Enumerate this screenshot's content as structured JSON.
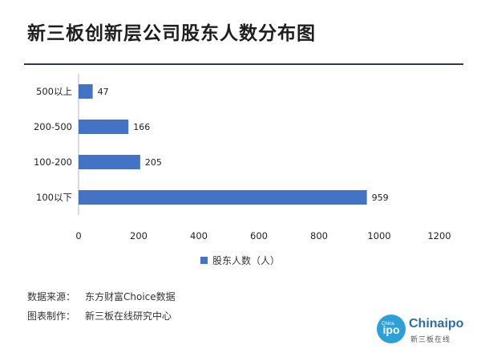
{
  "title": "新三板创新层公司股东人数分布图",
  "chart_data": {
    "type": "bar",
    "orientation": "horizontal",
    "categories": [
      "500以上",
      "200-500",
      "100-200",
      "100以下"
    ],
    "series": [
      {
        "name": "股东人数（人）",
        "values": [
          47,
          166,
          205,
          959
        ]
      }
    ],
    "xlim": [
      0,
      1200
    ],
    "xticks": [
      0,
      200,
      400,
      600,
      800,
      1000,
      1200
    ],
    "xtick_labels": [
      "0",
      "200",
      "400",
      "600",
      "800",
      "1000",
      "1200"
    ],
    "grid": false,
    "data_labels": true,
    "legend_position": "bottom",
    "bar_color": "#4472c4"
  },
  "legend_label": "股东人数（人）",
  "footer": {
    "source_key": "数据来源：",
    "source_val": "东方财富Choice数据",
    "maker_key": "图表制作：",
    "maker_val": "新三板在线研究中心"
  },
  "logo": {
    "circle_top": "China",
    "circle_main": "ipo",
    "word": "Chinaipo",
    "sub": "新三板在线"
  },
  "colors": {
    "bar": "#4472c4",
    "rule": "#2f3a47",
    "axis": "#b7b7b7",
    "logo": "#2ea0d8"
  }
}
